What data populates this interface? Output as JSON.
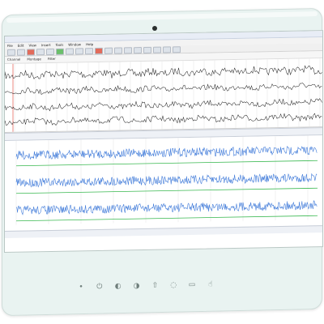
{
  "device": {
    "controls": [
      {
        "name": "dot-icon",
        "glyph": "•"
      },
      {
        "name": "power-icon",
        "glyph": "⏻"
      },
      {
        "name": "brightness-down-icon",
        "glyph": "◐"
      },
      {
        "name": "brightness-up-icon",
        "glyph": "◑"
      },
      {
        "name": "up-arrow-icon",
        "glyph": "⇧"
      },
      {
        "name": "bulb-icon",
        "glyph": "◌"
      },
      {
        "name": "battery-icon",
        "glyph": "▭"
      },
      {
        "name": "touch-icon",
        "glyph": "☝"
      }
    ]
  },
  "app": {
    "titlebar": "",
    "menus": [
      "File",
      "Edit",
      "View",
      "Insert",
      "Tools",
      "Window",
      "Help"
    ],
    "toolbar2": [
      "Channel",
      "Montage",
      "Filter"
    ],
    "top_pane": {
      "status": [
        "",
        "",
        ""
      ]
    },
    "bottom_pane": {
      "status": "",
      "time_ticks": [
        "",
        "",
        "",
        "",
        "",
        "",
        "",
        ""
      ]
    }
  },
  "colors": {
    "signal_top": "#1a1a1a",
    "signal_bottom": "#3f7ad9",
    "baseline": "#38b84f",
    "red_marker": "#e03a2f"
  }
}
